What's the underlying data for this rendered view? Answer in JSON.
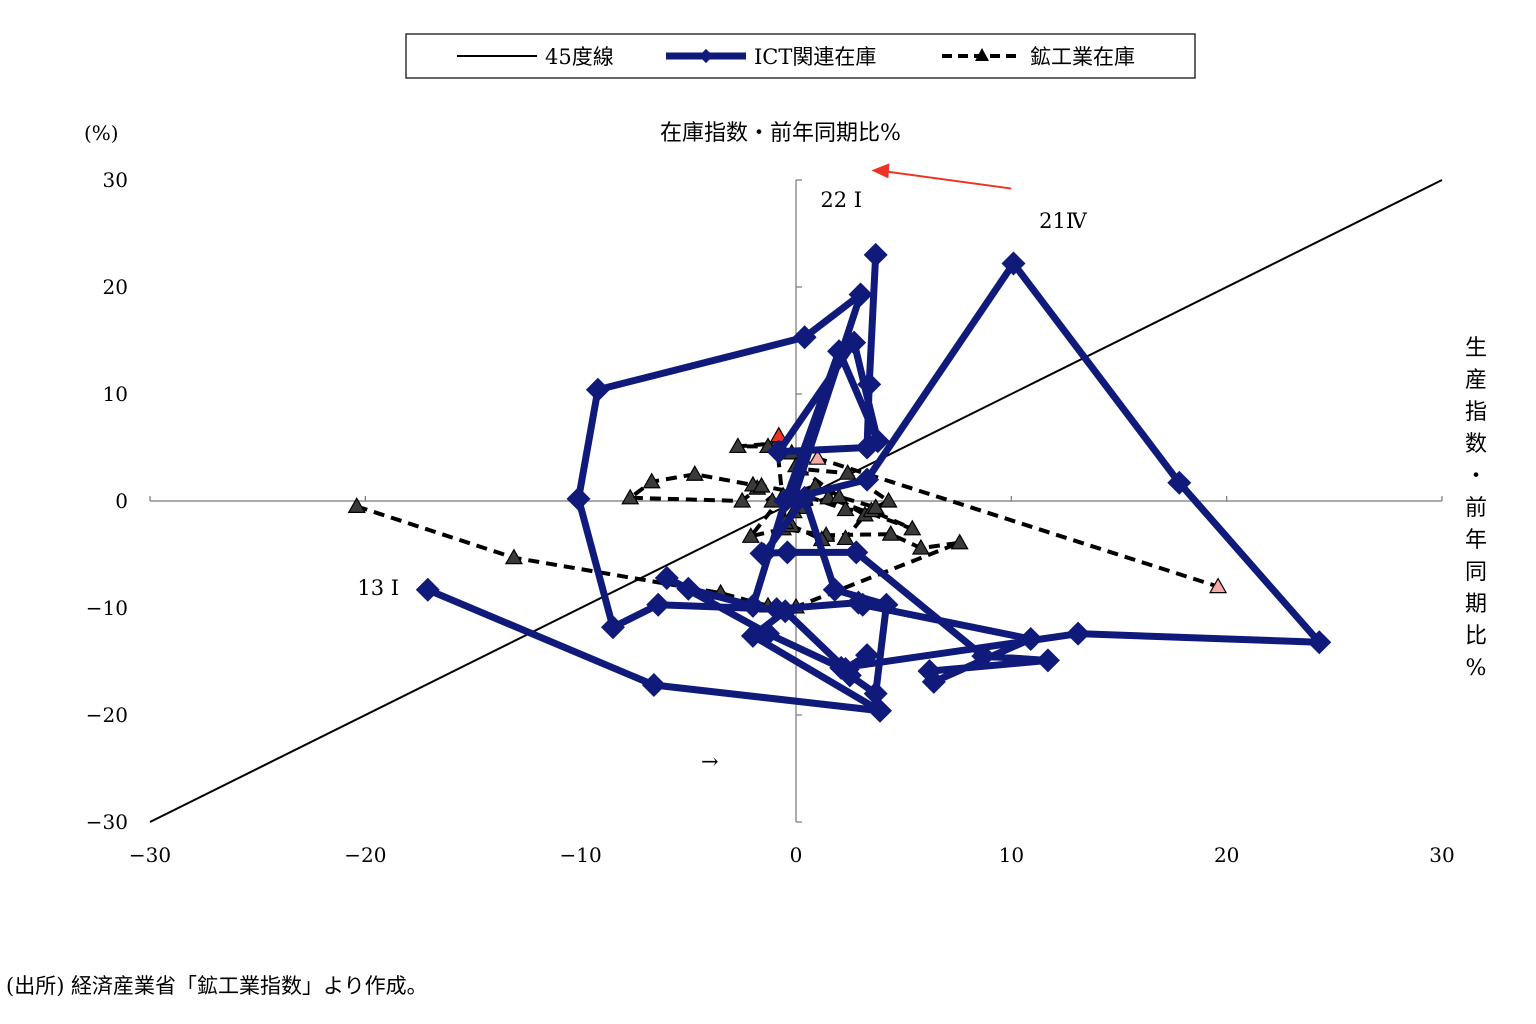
{
  "legend": {
    "line45_label": "45度線",
    "ict_label": "ICT関連在庫",
    "mining_label": "鉱工業在庫"
  },
  "source_note": "(出所) 経済産業省「鉱工業指数」より作成。",
  "chart_data": {
    "type": "scatter",
    "unit_label": "(%)",
    "ylabel": "在庫指数・前年同期比%",
    "xlabel": "生産指数・前年同期比%",
    "xlim": [
      -30,
      30
    ],
    "ylim": [
      -30,
      30
    ],
    "xticks": [
      -30,
      -20,
      -10,
      0,
      10,
      20,
      30
    ],
    "yticks": [
      -30,
      -20,
      -10,
      0,
      10,
      20,
      30
    ],
    "xtick_labels": [
      "−30",
      "−20",
      "−10",
      "0",
      "10",
      "20",
      "30"
    ],
    "ytick_labels": [
      "−30",
      "−20",
      "−10",
      "0",
      "10",
      "20",
      "30"
    ],
    "grid": false,
    "legend_position": "top",
    "annotations": [
      {
        "text": "22 I",
        "x": 2.1,
        "y": 27.5
      },
      {
        "text": "21Ⅳ",
        "x": 12.4,
        "y": 25.5
      },
      {
        "text": "13 I",
        "x": -19.4,
        "y": -8.8
      },
      {
        "text": "→",
        "x": -4.0,
        "y": -25.0
      }
    ],
    "arrow": {
      "from": [
        10.0,
        29.2
      ],
      "to": [
        3.5,
        30.9
      ],
      "color": "#ee3322"
    },
    "colors": {
      "line45": "#000000",
      "ict": "#0f1a7a",
      "mining": "#000000",
      "marker_dark": "#3a3a3a",
      "marker_latest": "#ee3322",
      "marker_recent": "#f5aaaa",
      "arrow": "#ee3322"
    },
    "series": [
      {
        "name": "45度線",
        "x": [
          -30,
          30
        ],
        "y": [
          -30,
          30
        ]
      },
      {
        "name": "ICT関連在庫",
        "x": [
          -17.1,
          -6.6,
          3.9,
          -2.0,
          -0.5,
          2.3,
          3.3,
          2.5,
          3.7,
          4.2,
          1.8,
          0.4,
          -1.5,
          -1.6,
          -0.4,
          2.8,
          8.7,
          11.7,
          6.2,
          6.4,
          10.9,
          3.1,
          2.9,
          -0.9,
          -6.4,
          -8.5,
          -10.1,
          -9.2,
          0.4,
          3.0,
          -0.1,
          3.3,
          10.1,
          17.8,
          24.3,
          13.1,
          2.1,
          -1.3,
          -6.0,
          -5.0,
          -2.0,
          -0.5,
          2.0,
          3.8,
          2.7,
          -0.8,
          3.3,
          3.4,
          3.7
        ],
        "y": [
          -8.3,
          -17.2,
          -19.6,
          -12.6,
          -10.3,
          -15.7,
          -14.4,
          -16.3,
          -18.0,
          -9.7,
          -8.3,
          0.3,
          -5.0,
          -4.9,
          -4.8,
          -4.8,
          -14.5,
          -14.9,
          -15.9,
          -16.9,
          -12.9,
          -9.7,
          -9.5,
          -10.1,
          -9.7,
          -11.8,
          0.2,
          10.4,
          15.3,
          19.3,
          0.3,
          2.0,
          22.2,
          1.7,
          -13.2,
          -12.4,
          -15.6,
          -12.4,
          -7.2,
          -8.2,
          -9.8,
          0.0,
          14.0,
          5.6,
          14.8,
          4.6,
          5.0,
          10.9,
          23.0
        ]
      },
      {
        "name": "鉱工業在庫",
        "x": [
          -20.4,
          -13.1,
          -3.5,
          -1.3,
          0.0,
          7.6,
          5.8,
          4.4,
          1.4,
          -0.6,
          -2.1,
          -0.6,
          0.9,
          3.2,
          2.3,
          1.2,
          -0.2,
          -1.8,
          -2.5,
          -7.7,
          -6.7,
          -4.7,
          -2.0,
          -1.1,
          -1.6,
          0.0,
          2.3,
          3.5,
          5.4,
          1.5,
          0.3,
          -0.1,
          -0.5,
          -0.9,
          -2.7,
          -1.3,
          -0.2,
          0.2,
          2.4,
          4.3,
          3.7,
          2.0,
          0.0,
          1.0,
          19.6
        ],
        "y": [
          -0.5,
          -5.3,
          -8.6,
          -9.8,
          -9.9,
          -3.9,
          -4.4,
          -3.1,
          -3.2,
          -2.6,
          -3.3,
          0.5,
          1.4,
          -1.3,
          -3.5,
          -3.6,
          -2.3,
          1.2,
          0.0,
          0.3,
          1.8,
          2.5,
          1.5,
          0.0,
          1.4,
          0.8,
          -0.8,
          -0.9,
          -2.6,
          0.3,
          -0.6,
          -1.0,
          -2.0,
          5.4,
          5.1,
          5.1,
          4.5,
          3.0,
          2.6,
          0.0,
          -0.6,
          0.4,
          3.3,
          4.0,
          -8.0
        ],
        "marker_fill": [
          "dark",
          "dark",
          "dark",
          "dark",
          "dark",
          "dark",
          "dark",
          "dark",
          "dark",
          "dark",
          "dark",
          "dark",
          "dark",
          "dark",
          "dark",
          "dark",
          "dark",
          "dark",
          "dark",
          "dark",
          "dark",
          "dark",
          "dark",
          "dark",
          "dark",
          "dark",
          "dark",
          "dark",
          "dark",
          "dark",
          "dark",
          "dark",
          "dark",
          "dark",
          "dark",
          "dark",
          "dark",
          "dark",
          "dark",
          "dark",
          "dark",
          "dark",
          "dark",
          "recent",
          "recent"
        ]
      }
    ],
    "extra_markers": [
      {
        "x": -0.8,
        "y": 6.1,
        "fill": "latest"
      }
    ]
  }
}
